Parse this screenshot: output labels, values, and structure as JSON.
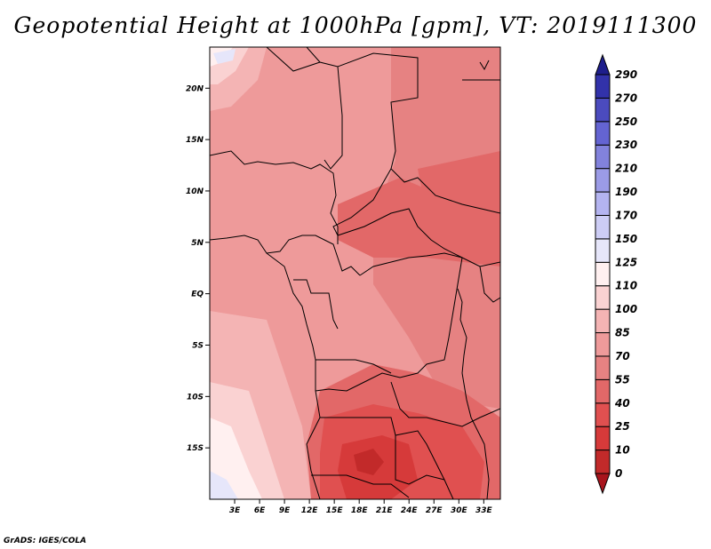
{
  "title": "Geopotential Height at 1000hPa [gpm], VT: 2019111300",
  "credit": "GrADS: IGES/COLA",
  "chart_data": {
    "type": "heatmap",
    "variable": "Geopotential Height at 1000hPa",
    "units": "gpm",
    "valid_time": "2019111300",
    "lon_ticks": [
      "3E",
      "6E",
      "9E",
      "12E",
      "15E",
      "18E",
      "21E",
      "24E",
      "27E",
      "30E",
      "33E"
    ],
    "lat_ticks": [
      "20N",
      "15N",
      "10N",
      "5N",
      "EQ",
      "5S",
      "10S",
      "15S"
    ],
    "lon_range": [
      0,
      35
    ],
    "lat_range": [
      -20,
      24
    ],
    "colorbar": {
      "levels": [
        "0",
        "10",
        "25",
        "40",
        "55",
        "70",
        "85",
        "100",
        "110",
        "125",
        "150",
        "170",
        "190",
        "210",
        "230",
        "250",
        "270",
        "290"
      ],
      "colors": [
        "#a8141c",
        "#c22a2a",
        "#d63a3a",
        "#e05050",
        "#e26868",
        "#e68282",
        "#ee9a9a",
        "#f4b4b4",
        "#fad2d2",
        "#fff0f0",
        "#e6e6fa",
        "#cdcdf5",
        "#b4b4f0",
        "#9b9be6",
        "#8282dc",
        "#6464d2",
        "#4b4bbe",
        "#3232aa",
        "#1e1e8c"
      ]
    }
  }
}
